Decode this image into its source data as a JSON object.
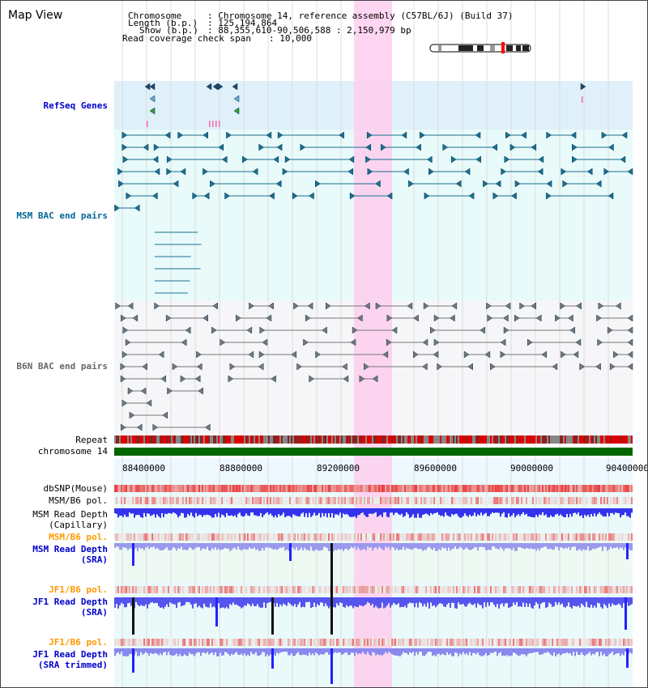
{
  "view_title": "Map View",
  "info": {
    "chromosome_label": "Chromosome",
    "chromosome_value": ": Chromosome 14, reference assembly (C57BL/6J) (Build 37)",
    "length_label": "Length (b.p.)",
    "length_value": ": 125,194,864",
    "show_label": "Show (b.p.)",
    "show_value": ": 88,355,610-90,506,588 : 2,150,979 bp",
    "coverage_label": "Read coverage check span",
    "coverage_value": ": 10,000"
  },
  "tracks": {
    "refseq": "RefSeq Genes",
    "msm_bac": "MSM BAC end pairs",
    "b6n_bac": "B6N BAC end pairs",
    "repeat": "Repeat",
    "chromosome": "chromosome 14",
    "dbsnp": "dbSNP(Mouse)",
    "msm_b6_pol_1": "MSM/B6 pol.",
    "msm_depth_cap_1": "MSM Read Depth",
    "msm_depth_cap_2": "(Capillary)",
    "msm_b6_pol_2": "MSM/B6 pol.",
    "msm_depth_sra_1": "MSM Read Depth",
    "msm_depth_sra_2": "(SRA)",
    "jf1_b6_pol_1": "JF1/B6 pol.",
    "jf1_depth_sra_1": "JF1 Read Depth",
    "jf1_depth_sra_2": "(SRA)",
    "jf1_b6_pol_2": "JF1/B6 pol.",
    "jf1_depth_trim_1": "JF1 Read Depth",
    "jf1_depth_trim_2": "(SRA trimmed)"
  },
  "axis": {
    "ticks": [
      "88400000",
      "88800000",
      "89200000",
      "89600000",
      "90000000",
      "90400000"
    ]
  },
  "colors": {
    "refseq_label": "#0000cc",
    "msm_label": "#006699",
    "b6n_label": "#666666",
    "orange_label": "#ff9900",
    "blue_label": "#0000cc",
    "highlight": "#ffccee",
    "chromosome_bar": "#006600"
  }
}
